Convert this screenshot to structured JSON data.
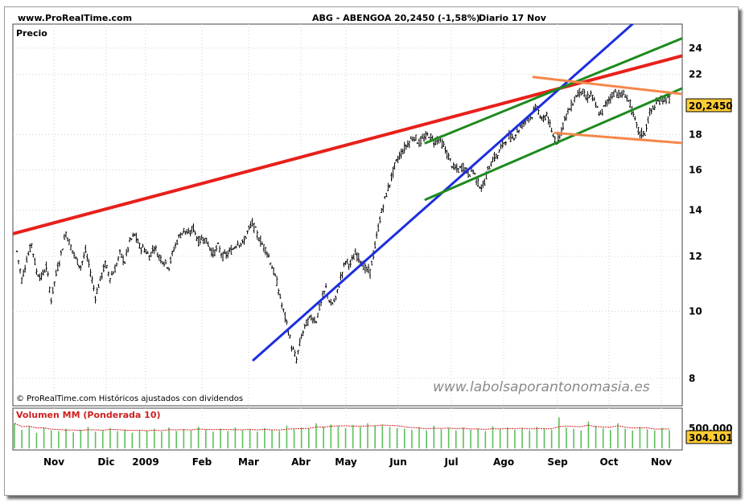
{
  "header": {
    "site": "www.ProRealTime.com",
    "ticker": "ABG - ABENGOA",
    "price": "20,2450 (-1,58%)",
    "period": "Diario  17 Nov"
  },
  "price_panel": {
    "label": "Precio",
    "last_label": "20,2450",
    "copyright": "© ProRealTime.com  Históricos ajustados con dividendos",
    "watermark": "www.labolsaporantonomasia.es"
  },
  "volume_panel": {
    "label": "Volumen MM (Ponderada 10)",
    "tick_label": "500.000",
    "last_label": "304.101"
  },
  "colors": {
    "candles": "#000000",
    "red_trendline": "#e8201a",
    "blue_trendline": "#1c2ee0",
    "green_channel": "#1d8a1d",
    "orange_channel": "#f5874a",
    "volume_bars": "#5cc05c",
    "volume_ma": "#d02020",
    "last_value_box": "#ffcc33"
  },
  "chart_data": [
    {
      "type": "line",
      "subtype": "candlestick",
      "y_scale": "log",
      "ylim": [
        7.3,
        26
      ],
      "y_ticks": [
        8,
        10,
        12,
        14,
        16,
        18,
        22,
        24
      ],
      "x_ticks": [
        "Nov",
        "Dic",
        "2009",
        "Feb",
        "Mar",
        "Abr",
        "May",
        "Jun",
        "Jul",
        "Ago",
        "Sep",
        "Oct",
        "Nov"
      ],
      "grid": true,
      "last_value": 20.245,
      "series": [
        {
          "values": [
            12.2,
            11.1,
            11.9,
            12.5,
            11.4,
            11.2,
            11.6,
            10.4,
            11.3,
            12.1,
            13.0,
            12.4,
            11.9,
            11.6,
            12.2,
            11.4,
            10.5,
            11.1,
            11.7,
            11.2,
            11.5,
            12.1,
            11.8,
            12.6,
            12.9,
            12.4,
            12.3,
            12.0,
            12.4,
            12.0,
            11.8,
            11.6,
            12.3,
            12.8,
            13.1,
            12.9,
            13.2,
            12.6,
            12.8,
            12.5,
            12.1,
            12.4,
            12.0,
            12.1,
            12.3,
            12.6,
            12.5,
            13.0,
            13.4,
            12.9,
            12.5,
            12.2,
            11.6,
            11.0,
            10.2,
            9.6,
            8.9,
            8.5,
            9.2,
            9.6,
            9.8,
            9.7,
            10.3,
            10.8,
            10.2,
            10.4,
            11.2,
            11.8,
            11.7,
            12.1,
            11.9,
            11.5,
            11.4,
            12.4,
            13.6,
            14.5,
            15.3,
            16.2,
            16.8,
            17.2,
            17.6,
            17.9,
            17.5,
            17.8,
            18.0,
            17.6,
            17.8,
            17.3,
            16.7,
            16.1,
            16.0,
            16.2,
            15.8,
            16.0,
            15.3,
            15.1,
            16.0,
            16.6,
            16.8,
            17.4,
            17.9,
            17.8,
            18.2,
            18.6,
            19.0,
            19.2,
            19.8,
            18.8,
            19.3,
            18.1,
            17.6,
            18.3,
            19.2,
            19.8,
            20.5,
            20.9,
            20.3,
            20.6,
            19.8,
            19.2,
            19.9,
            20.4,
            20.8,
            20.5,
            20.6,
            19.9,
            18.8,
            18.0,
            18.1,
            19.3,
            19.8,
            20.2,
            20.3,
            20.245
          ],
          "high": 21.3,
          "low": 8.5
        }
      ],
      "annotations": {
        "red_trendline": [
          12.95,
          23.4
        ],
        "blue_trendline": [
          8.5,
          27.0
        ],
        "green_channel_upper": [
          17.5,
          24.8
        ],
        "green_channel_lower": [
          14.5,
          21.0
        ],
        "orange_channel_upper": [
          21.8,
          20.6
        ],
        "orange_channel_lower": [
          18.1,
          17.5
        ]
      }
    },
    {
      "type": "bar",
      "title": "Volumen MM (Ponderada 10)",
      "y_ticks": [
        500000
      ],
      "last_value": 304101,
      "values": [
        420000,
        310000,
        380000,
        260000,
        350000,
        300000,
        290000,
        330000,
        270000,
        310000,
        360000,
        280000,
        300000,
        340000,
        290000,
        320000,
        260000,
        310000,
        300000,
        330000,
        280000,
        350000,
        290000,
        320000,
        300000,
        360000,
        310000,
        280000,
        330000,
        290000,
        350000,
        300000,
        320000,
        280000,
        340000,
        310000,
        290000,
        380000,
        320000,
        350000,
        330000,
        420000,
        360000,
        400000,
        370000,
        340000,
        390000,
        360000,
        420000,
        380000,
        400000,
        360000,
        340000,
        330000,
        310000,
        360000,
        300000,
        380000,
        320000,
        340000,
        300000,
        350000,
        310000,
        330000,
        290000,
        370000,
        320000,
        350000,
        310000,
        340000,
        300000,
        360000,
        330000,
        310000,
        520000,
        350000,
        330000,
        300000,
        450000,
        380000,
        340000,
        310000,
        420000,
        330000,
        300000,
        360000,
        320000,
        300000,
        340000,
        304101
      ]
    }
  ]
}
